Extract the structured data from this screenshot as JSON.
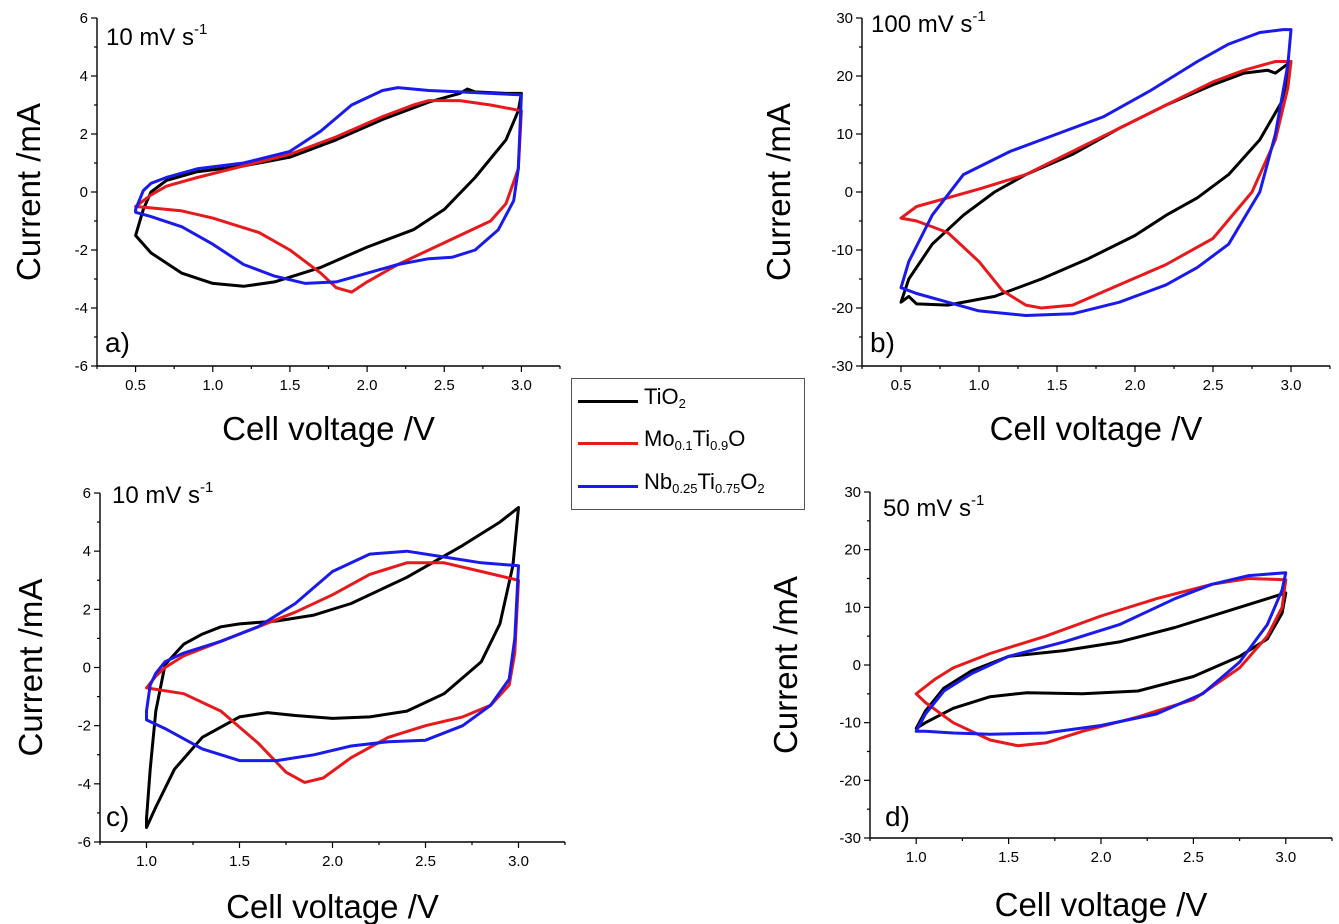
{
  "legend": [
    {
      "formula": [
        {
          "t": "Ti"
        },
        {
          "s": "2",
          "p": "O"
        }
      ],
      "color": "#000000"
    },
    {
      "formula": [
        {
          "t": "Mo"
        },
        {
          "s": "0.1"
        },
        {
          "t": "Ti"
        },
        {
          "s": "0.9"
        },
        {
          "t": "O"
        }
      ],
      "color": "#e8191c"
    },
    {
      "formula": [
        {
          "t": "Nb"
        },
        {
          "s": "0.25"
        },
        {
          "t": "Ti"
        },
        {
          "s": "0.75"
        },
        {
          "t": "O"
        },
        {
          "s": "2"
        }
      ],
      "color": "#1a1aeb"
    }
  ],
  "legend_text": [
    "TiO2",
    "Mo0.1Ti0.9O",
    "Nb0.25Ti0.75O2"
  ],
  "chart_data": [
    {
      "type": "line",
      "panel": "a)",
      "rate_label": "10 mV s-1",
      "xlabel": "Cell voltage /V",
      "ylabel": "Current /mA",
      "xlim": [
        0.25,
        3.25
      ],
      "ylim": [
        -6,
        6
      ],
      "xticks": [
        0.5,
        1.0,
        1.5,
        2.0,
        2.5,
        3.0
      ],
      "yticks": [
        -6,
        -4,
        -2,
        0,
        2,
        4,
        6
      ],
      "series": [
        {
          "name": "TiO2",
          "color": "#000000",
          "x": [
            0.5,
            0.55,
            0.6,
            0.7,
            0.9,
            1.2,
            1.5,
            1.8,
            2.1,
            2.4,
            2.6,
            2.65,
            2.7,
            2.9,
            3.0,
            2.98,
            2.9,
            2.7,
            2.5,
            2.3,
            2.0,
            1.7,
            1.4,
            1.2,
            1.0,
            0.8,
            0.6,
            0.5
          ],
          "y": [
            -1.5,
            -0.6,
            0.0,
            0.4,
            0.7,
            0.9,
            1.2,
            1.8,
            2.5,
            3.1,
            3.4,
            3.55,
            3.45,
            3.4,
            3.4,
            2.8,
            1.8,
            0.5,
            -0.6,
            -1.3,
            -1.9,
            -2.6,
            -3.1,
            -3.25,
            -3.15,
            -2.8,
            -2.1,
            -1.5
          ]
        },
        {
          "name": "Mo0.1Ti0.9O",
          "color": "#e8191c",
          "x": [
            0.5,
            0.6,
            0.7,
            0.9,
            1.2,
            1.5,
            1.8,
            2.1,
            2.3,
            2.4,
            2.6,
            2.8,
            3.0,
            2.98,
            2.9,
            2.8,
            2.6,
            2.4,
            2.2,
            2.0,
            1.9,
            1.8,
            1.7,
            1.5,
            1.3,
            1.0,
            0.8,
            0.6,
            0.5
          ],
          "y": [
            -0.5,
            -0.1,
            0.2,
            0.5,
            0.9,
            1.3,
            1.9,
            2.6,
            3.0,
            3.15,
            3.15,
            3.0,
            2.8,
            0.8,
            -0.4,
            -1.0,
            -1.5,
            -2.0,
            -2.5,
            -3.1,
            -3.45,
            -3.3,
            -2.8,
            -2.0,
            -1.4,
            -0.9,
            -0.65,
            -0.55,
            -0.5
          ]
        },
        {
          "name": "Nb0.25Ti0.75O2",
          "color": "#1a1aeb",
          "x": [
            0.5,
            0.55,
            0.6,
            0.7,
            0.9,
            1.2,
            1.5,
            1.7,
            1.9,
            2.1,
            2.2,
            2.4,
            2.6,
            2.8,
            3.0,
            2.98,
            2.95,
            2.85,
            2.7,
            2.55,
            2.4,
            2.2,
            2.0,
            1.8,
            1.6,
            1.4,
            1.2,
            1.0,
            0.8,
            0.6,
            0.5
          ],
          "y": [
            -0.6,
            0.05,
            0.3,
            0.5,
            0.8,
            1.0,
            1.4,
            2.1,
            3.0,
            3.5,
            3.6,
            3.5,
            3.45,
            3.4,
            3.35,
            0.8,
            -0.3,
            -1.3,
            -2.0,
            -2.25,
            -2.3,
            -2.5,
            -2.8,
            -3.1,
            -3.15,
            -2.9,
            -2.5,
            -1.8,
            -1.2,
            -0.85,
            -0.7
          ]
        }
      ]
    },
    {
      "type": "line",
      "panel": "b)",
      "rate_label": "100 mV s-1",
      "xlabel": "Cell voltage /V",
      "ylabel": "Current /mA",
      "xlim": [
        0.25,
        3.25
      ],
      "ylim": [
        -30,
        30
      ],
      "xticks": [
        0.5,
        1.0,
        1.5,
        2.0,
        2.5,
        3.0
      ],
      "yticks": [
        -30,
        -20,
        -10,
        0,
        10,
        20,
        30
      ],
      "series": [
        {
          "name": "TiO2",
          "color": "#000000",
          "x": [
            0.5,
            0.55,
            0.7,
            0.9,
            1.1,
            1.3,
            1.6,
            1.9,
            2.2,
            2.5,
            2.7,
            2.85,
            2.9,
            2.95,
            3.0,
            2.95,
            2.8,
            2.6,
            2.4,
            2.2,
            2.0,
            1.7,
            1.4,
            1.1,
            0.8,
            0.6,
            0.55,
            0.5
          ],
          "y": [
            -19,
            -15,
            -9,
            -4,
            0,
            3,
            6.5,
            11,
            15,
            18.5,
            20.5,
            21,
            20.5,
            21.5,
            22.5,
            16,
            9,
            3,
            -1,
            -4,
            -7.5,
            -11.5,
            -15,
            -18,
            -19.5,
            -19.3,
            -18,
            -19
          ]
        },
        {
          "name": "Mo0.1Ti0.9O",
          "color": "#e8191c",
          "x": [
            0.5,
            0.6,
            0.8,
            1.0,
            1.3,
            1.6,
            1.9,
            2.2,
            2.5,
            2.7,
            2.9,
            3.0,
            2.98,
            2.9,
            2.75,
            2.5,
            2.2,
            1.9,
            1.6,
            1.4,
            1.3,
            1.15,
            1.0,
            0.8,
            0.6,
            0.5
          ],
          "y": [
            -4.5,
            -2.5,
            -1,
            0.5,
            3,
            7,
            11,
            15,
            19,
            21,
            22.5,
            22.5,
            18,
            9,
            0,
            -8,
            -12.5,
            -16,
            -19.5,
            -20,
            -19.5,
            -17,
            -12,
            -7,
            -5,
            -4.5
          ]
        },
        {
          "name": "Nb0.25Ti0.75O2",
          "color": "#1a1aeb",
          "x": [
            0.5,
            0.55,
            0.7,
            0.9,
            1.2,
            1.5,
            1.8,
            2.1,
            2.4,
            2.6,
            2.8,
            2.95,
            3.0,
            2.98,
            2.9,
            2.8,
            2.6,
            2.4,
            2.2,
            1.9,
            1.6,
            1.3,
            1.0,
            0.8,
            0.6,
            0.5
          ],
          "y": [
            -16.5,
            -12,
            -4,
            3,
            7,
            10,
            13,
            17.5,
            22.5,
            25.5,
            27.5,
            28,
            28,
            22,
            10,
            0,
            -9,
            -13,
            -16,
            -19,
            -21,
            -21.3,
            -20.5,
            -19,
            -17.5,
            -16.5
          ]
        }
      ]
    },
    {
      "type": "line",
      "panel": "c)",
      "rate_label": "10 mV s-1",
      "xlabel": "Cell voltage /V",
      "ylabel": "Current /mA",
      "xlim": [
        0.75,
        3.25
      ],
      "ylim": [
        -6,
        6
      ],
      "xticks": [
        1.0,
        1.5,
        2.0,
        2.5,
        3.0
      ],
      "yticks": [
        -6,
        -4,
        -2,
        0,
        2,
        4,
        6
      ],
      "series": [
        {
          "name": "TiO2",
          "color": "#000000",
          "x": [
            1.0,
            1.02,
            1.05,
            1.1,
            1.2,
            1.3,
            1.4,
            1.5,
            1.7,
            1.9,
            2.1,
            2.4,
            2.7,
            2.9,
            3.0,
            2.97,
            2.9,
            2.8,
            2.6,
            2.4,
            2.2,
            2.0,
            1.8,
            1.65,
            1.5,
            1.3,
            1.15,
            1.05,
            1.0
          ],
          "y": [
            -5.2,
            -3.5,
            -1.5,
            0.1,
            0.8,
            1.15,
            1.4,
            1.5,
            1.6,
            1.8,
            2.2,
            3.1,
            4.2,
            5.0,
            5.5,
            3.5,
            1.5,
            0.2,
            -0.9,
            -1.5,
            -1.7,
            -1.75,
            -1.65,
            -1.55,
            -1.7,
            -2.4,
            -3.5,
            -4.8,
            -5.5
          ]
        },
        {
          "name": "Mo0.1Ti0.9O",
          "color": "#e8191c",
          "x": [
            1.0,
            1.05,
            1.1,
            1.2,
            1.4,
            1.6,
            1.8,
            2.0,
            2.2,
            2.4,
            2.6,
            2.8,
            3.0,
            2.98,
            2.95,
            2.85,
            2.7,
            2.5,
            2.3,
            2.1,
            1.95,
            1.85,
            1.75,
            1.6,
            1.4,
            1.2,
            1.0
          ],
          "y": [
            -0.7,
            -0.3,
            0.0,
            0.4,
            0.9,
            1.4,
            1.9,
            2.5,
            3.2,
            3.6,
            3.6,
            3.3,
            3.0,
            0.5,
            -0.6,
            -1.3,
            -1.7,
            -2.0,
            -2.4,
            -3.1,
            -3.8,
            -3.95,
            -3.6,
            -2.6,
            -1.5,
            -0.9,
            -0.7
          ]
        },
        {
          "name": "Nb0.25Ti0.75O2",
          "color": "#1a1aeb",
          "x": [
            1.0,
            1.02,
            1.05,
            1.1,
            1.2,
            1.4,
            1.6,
            1.8,
            2.0,
            2.2,
            2.4,
            2.6,
            2.8,
            3.0,
            2.98,
            2.95,
            2.85,
            2.7,
            2.5,
            2.3,
            2.1,
            1.9,
            1.7,
            1.5,
            1.3,
            1.1,
            1.0
          ],
          "y": [
            -1.5,
            -0.6,
            -0.2,
            0.2,
            0.5,
            0.9,
            1.4,
            2.2,
            3.3,
            3.9,
            4.0,
            3.8,
            3.6,
            3.5,
            1.0,
            -0.4,
            -1.3,
            -2.0,
            -2.5,
            -2.55,
            -2.7,
            -3.0,
            -3.2,
            -3.2,
            -2.8,
            -2.1,
            -1.8
          ]
        }
      ]
    },
    {
      "type": "line",
      "panel": "d)",
      "rate_label": "50 mV s-1",
      "xlabel": "Cell voltage /V",
      "ylabel": "Current /mA",
      "xlim": [
        0.75,
        3.25
      ],
      "ylim": [
        -30,
        30
      ],
      "xticks": [
        1.0,
        1.5,
        2.0,
        2.5,
        3.0
      ],
      "yticks": [
        -30,
        -20,
        -10,
        0,
        10,
        20,
        30
      ],
      "series": [
        {
          "name": "TiO2",
          "color": "#000000",
          "x": [
            1.0,
            1.05,
            1.15,
            1.3,
            1.5,
            1.8,
            2.1,
            2.4,
            2.7,
            2.9,
            3.0,
            2.98,
            2.9,
            2.75,
            2.5,
            2.2,
            1.9,
            1.6,
            1.4,
            1.2,
            1.05,
            1.0
          ],
          "y": [
            -11,
            -8,
            -4,
            -1,
            1.5,
            2.5,
            4,
            6.5,
            9.5,
            11.5,
            12.5,
            9,
            4.5,
            1.5,
            -2,
            -4.5,
            -5,
            -4.8,
            -5.5,
            -7.5,
            -10,
            -11
          ]
        },
        {
          "name": "Mo0.1Ti0.9O",
          "color": "#e8191c",
          "x": [
            1.0,
            1.1,
            1.2,
            1.4,
            1.7,
            2.0,
            2.3,
            2.6,
            2.8,
            3.0,
            2.98,
            2.9,
            2.75,
            2.5,
            2.2,
            1.9,
            1.7,
            1.55,
            1.4,
            1.2,
            1.05,
            1.0
          ],
          "y": [
            -5,
            -2.5,
            -0.5,
            2,
            5,
            8.5,
            11.5,
            14,
            15,
            14.8,
            10,
            5,
            -0.5,
            -6,
            -9,
            -11.5,
            -13.5,
            -14,
            -13,
            -10,
            -6.5,
            -5
          ]
        },
        {
          "name": "Nb0.25Ti0.75O2",
          "color": "#1a1aeb",
          "x": [
            1.0,
            1.05,
            1.15,
            1.3,
            1.5,
            1.8,
            2.1,
            2.4,
            2.6,
            2.8,
            3.0,
            2.98,
            2.9,
            2.75,
            2.55,
            2.3,
            2.0,
            1.7,
            1.4,
            1.2,
            1.05,
            1.0
          ],
          "y": [
            -11.5,
            -8.5,
            -4.5,
            -1.5,
            1.5,
            4,
            7,
            11.5,
            14,
            15.5,
            16,
            13,
            7,
            0.5,
            -5,
            -8.5,
            -10.5,
            -11.8,
            -12,
            -11.8,
            -11.5,
            -11.5
          ]
        }
      ]
    }
  ]
}
